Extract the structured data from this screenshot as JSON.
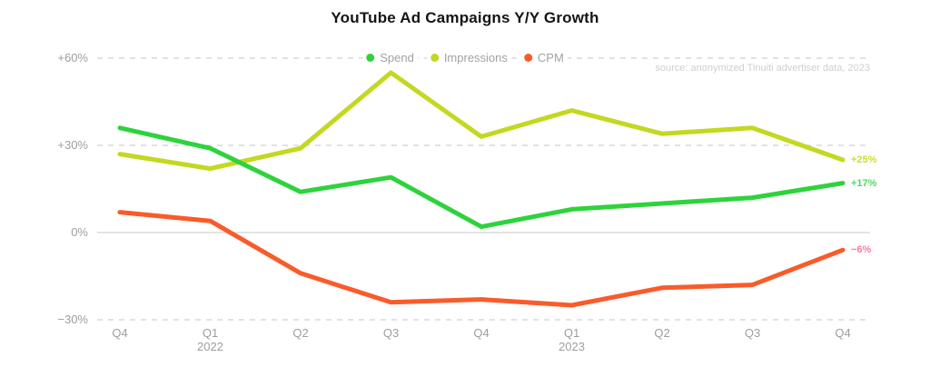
{
  "title": "YouTube Ad Campaigns Y/Y Growth",
  "source": "source: anonymized Tinuiti advertiser data, 2023",
  "chart_data": {
    "type": "line",
    "title": "YouTube Ad Campaigns Y/Y Growth",
    "categories": [
      "Q4 2021",
      "Q1 2022",
      "Q2 2022",
      "Q3 2022",
      "Q4 2022",
      "Q1 2023",
      "Q2 2023",
      "Q3 2023",
      "Q4 2023"
    ],
    "x_tick_labels": [
      {
        "q": "Q4",
        "year": ""
      },
      {
        "q": "Q1",
        "year": "2022"
      },
      {
        "q": "Q2",
        "year": ""
      },
      {
        "q": "Q3",
        "year": ""
      },
      {
        "q": "Q4",
        "year": ""
      },
      {
        "q": "Q1",
        "year": "2023"
      },
      {
        "q": "Q2",
        "year": ""
      },
      {
        "q": "Q3",
        "year": ""
      },
      {
        "q": "Q4",
        "year": ""
      }
    ],
    "series": [
      {
        "name": "Spend",
        "color": "#2ed33c",
        "end_label": "+17%",
        "end_label_color": "#4fd964",
        "values": [
          36,
          29,
          14,
          19,
          2,
          8,
          10,
          12,
          17
        ]
      },
      {
        "name": "Impressions",
        "color": "#c3d820",
        "end_label": "+25%",
        "end_label_color": "#ccdd32",
        "values": [
          27,
          22,
          29,
          55,
          33,
          42,
          34,
          36,
          25
        ]
      },
      {
        "name": "CPM",
        "color": "#f95b2b",
        "end_label": "−6%",
        "end_label_color": "#fa7f9d",
        "values": [
          7,
          4,
          -14,
          -24,
          -23,
          -25,
          -19,
          -18,
          -6
        ]
      }
    ],
    "y_ticks": [
      {
        "label": "+60%",
        "value": 60
      },
      {
        "label": "+30%",
        "value": 30
      },
      {
        "label": "0%",
        "value": 0
      },
      {
        "label": "−30%",
        "value": -30
      }
    ],
    "ylim": [
      -30,
      60
    ],
    "grid": "horizontal dashed, solid zero line",
    "legend_position": "top",
    "unit": "percent Y/Y growth"
  }
}
